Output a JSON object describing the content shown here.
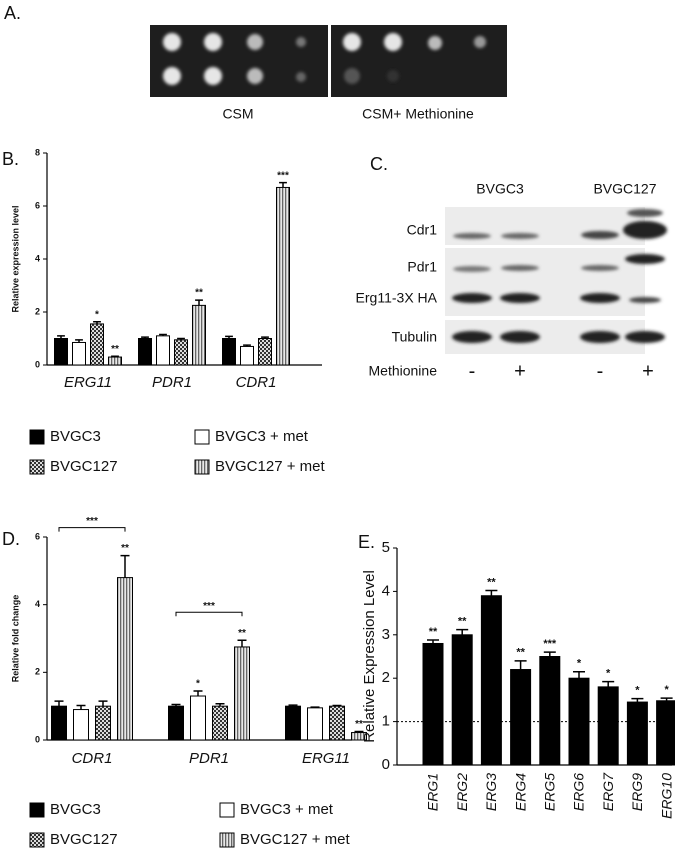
{
  "spot_assay": {
    "label": "A.",
    "media": [
      "CSM",
      "CSM+ Methionine"
    ]
  },
  "western_blot": {
    "label": "C.",
    "strains": [
      "BVGC3",
      "BVGC127"
    ],
    "proteins": [
      "Cdr1",
      "Pdr1",
      "Erg11-3X HA",
      "Tubulin"
    ],
    "treatment": "Methionine",
    "lanes": [
      "-",
      "+",
      "-",
      "+"
    ]
  },
  "chart_data": [
    {
      "type": "bar",
      "panel_label": "B.",
      "y_label": "Relative expression level",
      "categories": [
        "ERG11",
        "PDR1",
        "CDR1"
      ],
      "series": [
        {
          "name": "BVGC3",
          "color": "#000000",
          "pattern": "solid",
          "values": [
            1.0,
            1.0,
            1.0
          ],
          "errors": [
            0.1,
            0.05,
            0.08
          ],
          "significance": [
            null,
            null,
            null
          ]
        },
        {
          "name": "BVGC3 + met",
          "color": "#ffffff",
          "pattern": "hollow",
          "values": [
            0.85,
            1.1,
            0.7
          ],
          "errors": [
            0.1,
            0.05,
            0.05
          ],
          "significance": [
            null,
            null,
            null
          ]
        },
        {
          "name": "BVGC127",
          "color": "#888888",
          "pattern": "checker",
          "values": [
            1.55,
            0.95,
            1.0
          ],
          "errors": [
            0.08,
            0.05,
            0.05
          ],
          "significance": [
            "*",
            null,
            null
          ]
        },
        {
          "name": "BVGC127 + met",
          "color": "#999999",
          "pattern": "stripes",
          "values": [
            0.3,
            2.25,
            6.7
          ],
          "errors": [
            0.03,
            0.2,
            0.18
          ],
          "significance": [
            "**",
            "**",
            "***"
          ]
        }
      ],
      "ylim": [
        0,
        8
      ],
      "yticks": [
        0,
        2,
        4,
        6,
        8
      ]
    },
    {
      "type": "bar",
      "panel_label": "D.",
      "y_label": "Relative fold change",
      "categories": [
        "CDR1",
        "PDR1",
        "ERG11"
      ],
      "series": [
        {
          "name": "BVGC3",
          "color": "#000000",
          "pattern": "solid",
          "values": [
            1.0,
            1.0,
            1.0
          ],
          "errors": [
            0.15,
            0.05,
            0.03
          ],
          "significance": [
            null,
            null,
            null
          ]
        },
        {
          "name": "BVGC3 + met",
          "color": "#ffffff",
          "pattern": "hollow",
          "values": [
            0.9,
            1.3,
            0.95
          ],
          "errors": [
            0.12,
            0.15,
            0.02
          ],
          "significance": [
            null,
            "*",
            null
          ]
        },
        {
          "name": "BVGC127",
          "color": "#888888",
          "pattern": "checker",
          "values": [
            1.0,
            1.0,
            1.0
          ],
          "errors": [
            0.15,
            0.07,
            0.02
          ],
          "significance": [
            null,
            null,
            null
          ]
        },
        {
          "name": "BVGC127 + met",
          "color": "#999999",
          "pattern": "stripes",
          "values": [
            4.8,
            2.75,
            0.22
          ],
          "errors": [
            0.65,
            0.2,
            0.03
          ],
          "significance": [
            "**",
            "**",
            "**"
          ]
        }
      ],
      "brackets": [
        "***",
        "***",
        null
      ],
      "ylim": [
        0,
        6
      ],
      "yticks": [
        0,
        2,
        4,
        6
      ]
    },
    {
      "type": "bar",
      "panel_label": "E.",
      "y_label": "Relative Expression Level",
      "categories": [
        "ERG1",
        "ERG2",
        "ERG3",
        "ERG4",
        "ERG5",
        "ERG6",
        "ERG7",
        "ERG9",
        "ERG10"
      ],
      "values": [
        2.8,
        3.0,
        3.9,
        2.2,
        2.5,
        2.0,
        1.8,
        1.45,
        1.48
      ],
      "errors": [
        0.08,
        0.12,
        0.12,
        0.2,
        0.1,
        0.15,
        0.12,
        0.08,
        0.06
      ],
      "significance": [
        "**",
        "**",
        "**",
        "**",
        "***",
        "*",
        "*",
        "*",
        "*"
      ],
      "color": "#000000",
      "reference_line": 1,
      "ylim": [
        0,
        5
      ],
      "yticks": [
        0,
        1,
        2,
        3,
        4,
        5
      ]
    }
  ]
}
